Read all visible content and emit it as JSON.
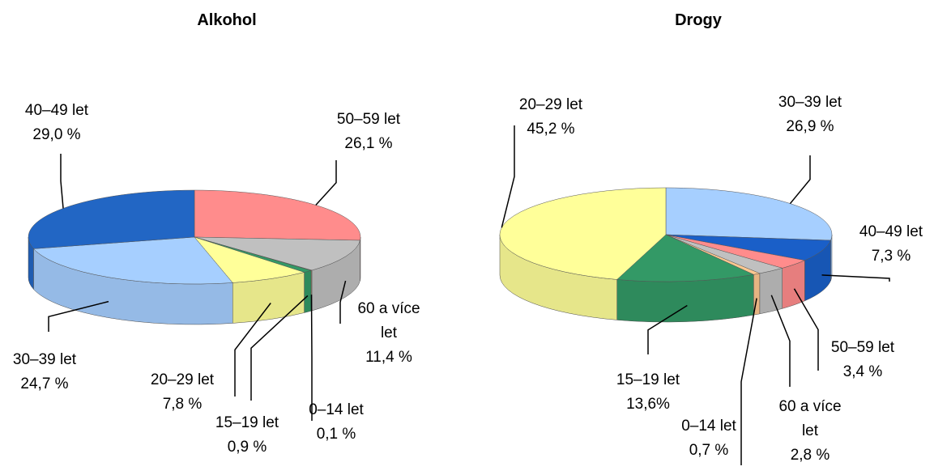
{
  "chart_data": [
    {
      "type": "pie",
      "title": "Alkohol",
      "categories": [
        "50–59 let",
        "60 a více let",
        "0–14 let",
        "15–19 let",
        "20–29 let",
        "30–39 let",
        "40–49 let"
      ],
      "values": [
        26.1,
        11.4,
        0.1,
        0.9,
        7.8,
        24.7,
        29.0
      ],
      "value_labels": [
        "26,1 %",
        "11,4 %",
        "0,1 %",
        "0,9 %",
        "7,8 %",
        "24,7 %",
        "29,0 %"
      ],
      "colors": [
        "#ff8c8c",
        "#c0c0c0",
        "#ffc890",
        "#339966",
        "#ffff99",
        "#a6cfff",
        "#2266c4"
      ]
    },
    {
      "type": "pie",
      "title": "Drogy",
      "categories": [
        "30–39 let",
        "40–49 let",
        "50–59 let",
        "60 a více let",
        "0–14 let",
        "15–19 let",
        "20–29 let"
      ],
      "values": [
        26.9,
        7.3,
        3.4,
        2.8,
        0.7,
        13.6,
        45.2
      ],
      "value_labels": [
        "26,9 %",
        "7,3 %",
        "3,4 %",
        "2,8 %",
        "0,7 %",
        "13,6%",
        "45,2 %"
      ],
      "colors": [
        "#a6cfff",
        "#1a5fc8",
        "#ff8c8c",
        "#c0c0c0",
        "#ffc890",
        "#339966",
        "#ffff99"
      ]
    }
  ]
}
